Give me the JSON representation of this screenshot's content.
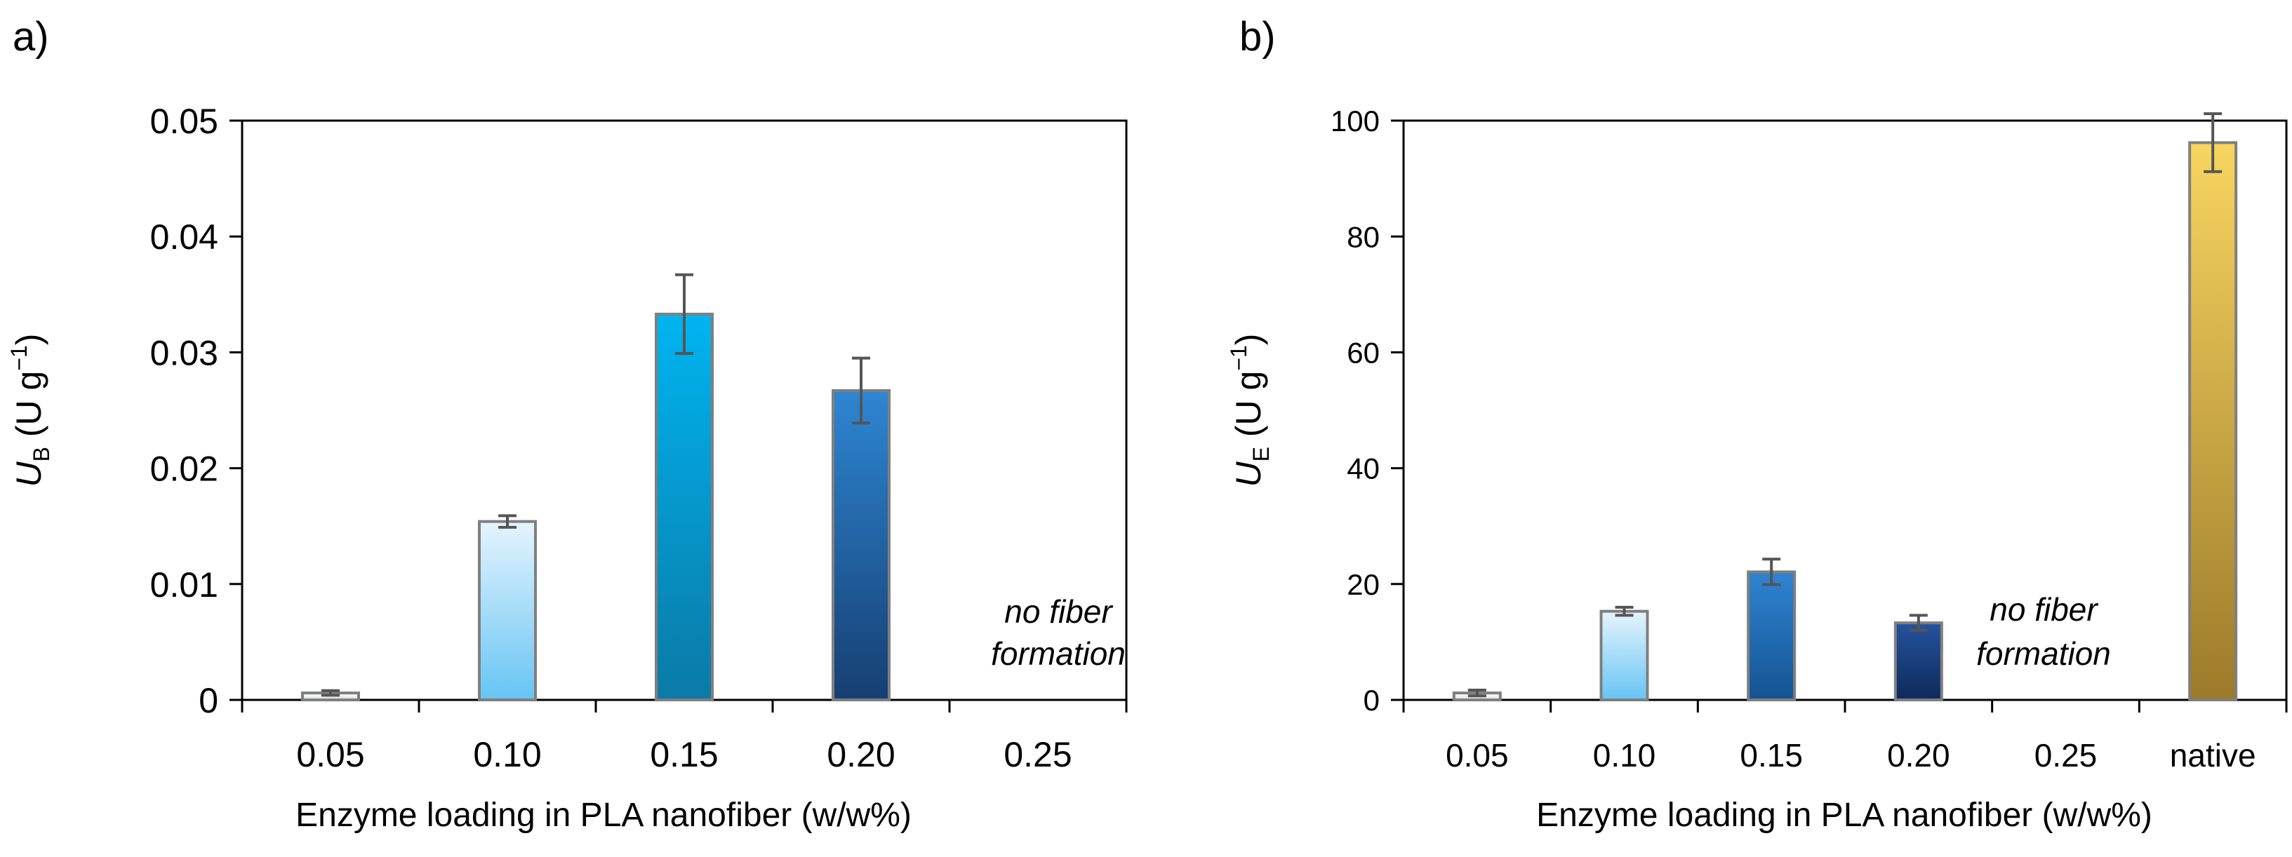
{
  "chart_data": [
    {
      "panel_label": "a)",
      "type": "bar",
      "categories": [
        "0.05",
        "0.10",
        "0.15",
        "0.20",
        "0.25"
      ],
      "values": [
        0.0006,
        0.0154,
        0.0333,
        0.0267,
        null
      ],
      "errors": [
        0.0002,
        0.0005,
        0.0034,
        0.0028,
        null
      ],
      "colors": [
        [
          "#ffffff",
          "#d8dde2"
        ],
        [
          "#e6f4fd",
          "#66c4f4"
        ],
        [
          "#00b4f0",
          "#0b7aa6"
        ],
        [
          "#2e86d3",
          "#163f72"
        ],
        null
      ],
      "ylabel_symbol": "U",
      "ylabel_subscript": "B",
      "ylabel_unit_open": " (U g",
      "ylabel_unit_sup": "−1",
      "ylabel_unit_close": ")",
      "xlabel": "Enzyme loading in PLA nanofiber (w/w%)",
      "ylim": [
        0,
        0.05
      ],
      "yticks": [
        0,
        0.01,
        0.02,
        0.03,
        0.04,
        0.05
      ],
      "ytick_labels": [
        "0",
        "0.01",
        "0.02",
        "0.03",
        "0.04",
        "0.05"
      ],
      "annotation": [
        "no fiber",
        "formation"
      ]
    },
    {
      "panel_label": "b)",
      "type": "bar",
      "categories": [
        "0.05",
        "0.10",
        "0.15",
        "0.20",
        "0.25",
        "native"
      ],
      "values": [
        1.2,
        15.3,
        22.1,
        13.3,
        null,
        96.2
      ],
      "errors": [
        0.5,
        0.7,
        2.2,
        1.3,
        null,
        5.0
      ],
      "colors": [
        [
          "#ffffff",
          "#d8dde2"
        ],
        [
          "#e6f4fd",
          "#66c4f4"
        ],
        [
          "#2f84d2",
          "#145392"
        ],
        [
          "#26539e",
          "#0d2a5a"
        ],
        null,
        [
          "#f8d560",
          "#9c7a2a"
        ]
      ],
      "ylabel_symbol": "U",
      "ylabel_subscript": "E",
      "ylabel_unit_open": " (U g",
      "ylabel_unit_sup": "−1",
      "ylabel_unit_close": ")",
      "xlabel": "Enzyme loading in PLA nanofiber (w/w%)",
      "ylim": [
        0,
        100
      ],
      "yticks": [
        0,
        20,
        40,
        60,
        80,
        100
      ],
      "ytick_labels": [
        "0",
        "20",
        "40",
        "60",
        "80",
        "100"
      ],
      "annotation": [
        "no fiber",
        "formation"
      ]
    }
  ]
}
